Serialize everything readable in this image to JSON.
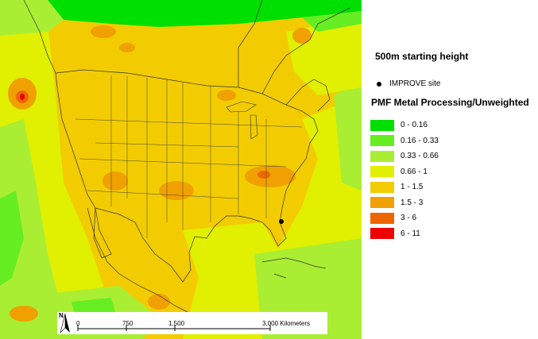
{
  "map": {
    "title": "500m starting height",
    "site_key_label": "IMPROVE site",
    "legend_title": "PMF Metal Processing/Unweighted",
    "legend": [
      {
        "label": "0 - 0.16",
        "color": "#00e000"
      },
      {
        "label": "0.16 - 0.33",
        "color": "#66ee22"
      },
      {
        "label": "0.33 - 0.66",
        "color": "#aaee33"
      },
      {
        "label": "0.66 - 1",
        "color": "#e0f000"
      },
      {
        "label": "1 - 1.5",
        "color": "#f2cc00"
      },
      {
        "label": "1.5 - 3",
        "color": "#f0a000"
      },
      {
        "label": "3 - 6",
        "color": "#ee6600"
      },
      {
        "label": "6 - 11",
        "color": "#ee0000"
      }
    ],
    "scale": {
      "north": "N",
      "labels": [
        "0",
        "750",
        "1,500",
        "3,000 Kilometers"
      ]
    }
  }
}
